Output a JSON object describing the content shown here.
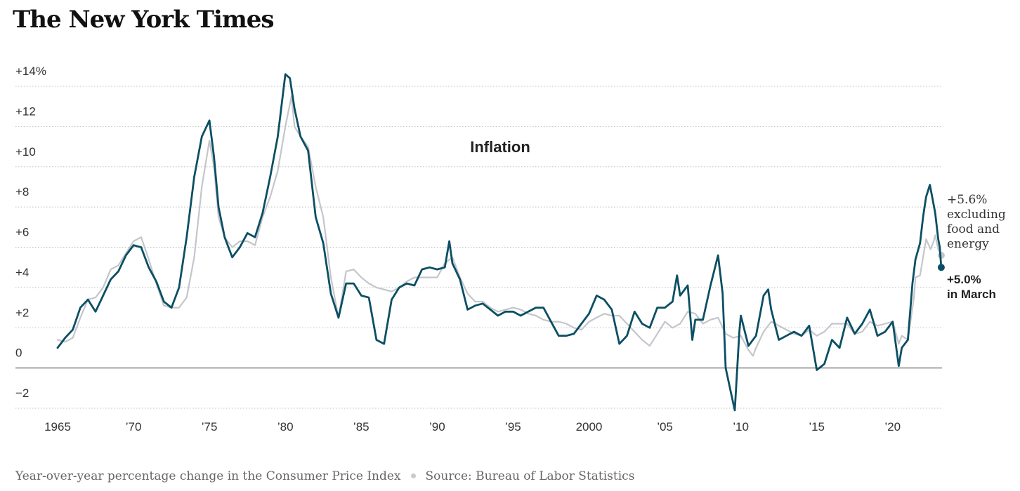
{
  "logo": "The New York Times",
  "footer": {
    "description": "Year-over-year percentage change in the Consumer Price Index",
    "source": "Source: Bureau of Labor Statistics"
  },
  "chart_data": {
    "type": "line",
    "title": "Inflation",
    "xlabel": "",
    "ylabel": "",
    "xlim": [
      1965,
      2023.25
    ],
    "ylim": [
      -2,
      14
    ],
    "grid": true,
    "legend": "none",
    "y_ticks": [
      {
        "value": 14,
        "label": "+14%"
      },
      {
        "value": 12,
        "label": "+12"
      },
      {
        "value": 10,
        "label": "+10"
      },
      {
        "value": 8,
        "label": "+8"
      },
      {
        "value": 6,
        "label": "+6"
      },
      {
        "value": 4,
        "label": "+4"
      },
      {
        "value": 2,
        "label": "+2"
      },
      {
        "value": 0,
        "label": "0"
      },
      {
        "value": -2,
        "label": "−2"
      }
    ],
    "x_ticks": [
      {
        "value": 1965,
        "label": "1965"
      },
      {
        "value": 1970,
        "label": "’70"
      },
      {
        "value": 1975,
        "label": "’75"
      },
      {
        "value": 1980,
        "label": "’80"
      },
      {
        "value": 1985,
        "label": "’85"
      },
      {
        "value": 1990,
        "label": "’90"
      },
      {
        "value": 1995,
        "label": "’95"
      },
      {
        "value": 2000,
        "label": "2000"
      },
      {
        "value": 2005,
        "label": "’05"
      },
      {
        "value": 2010,
        "label": "’10"
      },
      {
        "value": 2015,
        "label": "’15"
      },
      {
        "value": 2020,
        "label": "’20"
      }
    ],
    "series": [
      {
        "key": "headline",
        "color": "#0b4f63",
        "annotation": [
          "+5.0%",
          "in March"
        ],
        "points": [
          [
            1965,
            1.0
          ],
          [
            1965.5,
            1.5
          ],
          [
            1966,
            1.9
          ],
          [
            1966.5,
            3.0
          ],
          [
            1967,
            3.4
          ],
          [
            1967.5,
            2.8
          ],
          [
            1968,
            3.6
          ],
          [
            1968.5,
            4.4
          ],
          [
            1969,
            4.8
          ],
          [
            1969.5,
            5.6
          ],
          [
            1970,
            6.1
          ],
          [
            1970.5,
            6.0
          ],
          [
            1971,
            5.0
          ],
          [
            1971.5,
            4.3
          ],
          [
            1972,
            3.3
          ],
          [
            1972.5,
            3.0
          ],
          [
            1973,
            4.0
          ],
          [
            1973.5,
            6.5
          ],
          [
            1974,
            9.5
          ],
          [
            1974.5,
            11.5
          ],
          [
            1975,
            12.3
          ],
          [
            1975.3,
            10.5
          ],
          [
            1975.6,
            8.0
          ],
          [
            1976,
            6.5
          ],
          [
            1976.5,
            5.5
          ],
          [
            1977,
            6.0
          ],
          [
            1977.5,
            6.7
          ],
          [
            1978,
            6.5
          ],
          [
            1978.5,
            7.7
          ],
          [
            1979,
            9.5
          ],
          [
            1979.5,
            11.5
          ],
          [
            1980,
            14.6
          ],
          [
            1980.3,
            14.4
          ],
          [
            1980.6,
            12.9
          ],
          [
            1981,
            11.5
          ],
          [
            1981.5,
            10.8
          ],
          [
            1982,
            7.5
          ],
          [
            1982.5,
            6.2
          ],
          [
            1983,
            3.7
          ],
          [
            1983.5,
            2.5
          ],
          [
            1984,
            4.2
          ],
          [
            1984.5,
            4.2
          ],
          [
            1985,
            3.6
          ],
          [
            1985.5,
            3.5
          ],
          [
            1986,
            1.4
          ],
          [
            1986.5,
            1.2
          ],
          [
            1987,
            3.4
          ],
          [
            1987.5,
            4.0
          ],
          [
            1988,
            4.2
          ],
          [
            1988.5,
            4.1
          ],
          [
            1989,
            4.9
          ],
          [
            1989.5,
            5.0
          ],
          [
            1990,
            4.9
          ],
          [
            1990.5,
            5.0
          ],
          [
            1990.8,
            6.3
          ],
          [
            1991,
            5.2
          ],
          [
            1991.5,
            4.4
          ],
          [
            1992,
            2.9
          ],
          [
            1992.5,
            3.1
          ],
          [
            1993,
            3.2
          ],
          [
            1993.5,
            2.9
          ],
          [
            1994,
            2.6
          ],
          [
            1994.5,
            2.8
          ],
          [
            1995,
            2.8
          ],
          [
            1995.5,
            2.6
          ],
          [
            1996,
            2.8
          ],
          [
            1996.5,
            3.0
          ],
          [
            1997,
            3.0
          ],
          [
            1997.5,
            2.3
          ],
          [
            1998,
            1.6
          ],
          [
            1998.5,
            1.6
          ],
          [
            1999,
            1.7
          ],
          [
            1999.5,
            2.2
          ],
          [
            2000,
            2.7
          ],
          [
            2000.5,
            3.6
          ],
          [
            2001,
            3.4
          ],
          [
            2001.5,
            2.9
          ],
          [
            2002,
            1.2
          ],
          [
            2002.5,
            1.6
          ],
          [
            2003,
            2.8
          ],
          [
            2003.5,
            2.2
          ],
          [
            2004,
            2.0
          ],
          [
            2004.5,
            3.0
          ],
          [
            2005,
            3.0
          ],
          [
            2005.5,
            3.3
          ],
          [
            2005.8,
            4.6
          ],
          [
            2006,
            3.6
          ],
          [
            2006.5,
            4.1
          ],
          [
            2006.8,
            1.4
          ],
          [
            2007,
            2.4
          ],
          [
            2007.5,
            2.4
          ],
          [
            2008,
            4.1
          ],
          [
            2008.5,
            5.6
          ],
          [
            2008.8,
            3.7
          ],
          [
            2009,
            0.0
          ],
          [
            2009.4,
            -1.4
          ],
          [
            2009.6,
            -2.1
          ],
          [
            2009.9,
            1.8
          ],
          [
            2010,
            2.6
          ],
          [
            2010.5,
            1.1
          ],
          [
            2011,
            1.6
          ],
          [
            2011.5,
            3.6
          ],
          [
            2011.8,
            3.9
          ],
          [
            2012,
            2.9
          ],
          [
            2012.5,
            1.4
          ],
          [
            2013,
            1.6
          ],
          [
            2013.5,
            1.8
          ],
          [
            2014,
            1.6
          ],
          [
            2014.5,
            2.1
          ],
          [
            2015,
            -0.1
          ],
          [
            2015.5,
            0.2
          ],
          [
            2016,
            1.4
          ],
          [
            2016.5,
            1.0
          ],
          [
            2017,
            2.5
          ],
          [
            2017.5,
            1.7
          ],
          [
            2018,
            2.2
          ],
          [
            2018.5,
            2.9
          ],
          [
            2019,
            1.6
          ],
          [
            2019.5,
            1.8
          ],
          [
            2020,
            2.3
          ],
          [
            2020.4,
            0.1
          ],
          [
            2020.6,
            1.0
          ],
          [
            2021,
            1.4
          ],
          [
            2021.3,
            4.2
          ],
          [
            2021.5,
            5.4
          ],
          [
            2021.8,
            6.2
          ],
          [
            2022,
            7.5
          ],
          [
            2022.2,
            8.5
          ],
          [
            2022.45,
            9.1
          ],
          [
            2022.6,
            8.5
          ],
          [
            2022.8,
            7.7
          ],
          [
            2023,
            6.4
          ],
          [
            2023.1,
            6.0
          ],
          [
            2023.2,
            5.0
          ]
        ]
      },
      {
        "key": "core",
        "color": "#c3c6cc",
        "annotation": [
          "+5.6%",
          "excluding",
          "food and",
          "energy"
        ],
        "points": [
          [
            1965,
            1.4
          ],
          [
            1965.5,
            1.3
          ],
          [
            1966,
            1.5
          ],
          [
            1966.5,
            2.5
          ],
          [
            1967,
            3.4
          ],
          [
            1967.5,
            3.5
          ],
          [
            1968,
            4.0
          ],
          [
            1968.5,
            4.9
          ],
          [
            1969,
            5.1
          ],
          [
            1969.5,
            5.7
          ],
          [
            1970,
            6.3
          ],
          [
            1970.5,
            6.5
          ],
          [
            1971,
            5.4
          ],
          [
            1971.5,
            4.2
          ],
          [
            1972,
            3.1
          ],
          [
            1972.5,
            3.0
          ],
          [
            1973,
            3.0
          ],
          [
            1973.5,
            3.5
          ],
          [
            1974,
            5.5
          ],
          [
            1974.5,
            9.0
          ],
          [
            1975,
            11.3
          ],
          [
            1975.3,
            10.0
          ],
          [
            1975.6,
            7.5
          ],
          [
            1976,
            6.5
          ],
          [
            1976.5,
            6.0
          ],
          [
            1977,
            6.3
          ],
          [
            1977.5,
            6.3
          ],
          [
            1978,
            6.1
          ],
          [
            1978.5,
            7.5
          ],
          [
            1979,
            8.5
          ],
          [
            1979.5,
            9.8
          ],
          [
            1980,
            12.0
          ],
          [
            1980.4,
            13.5
          ],
          [
            1980.6,
            12.0
          ],
          [
            1981,
            11.5
          ],
          [
            1981.5,
            11.0
          ],
          [
            1982,
            9.0
          ],
          [
            1982.5,
            7.5
          ],
          [
            1983,
            4.5
          ],
          [
            1983.5,
            2.5
          ],
          [
            1984,
            4.8
          ],
          [
            1984.5,
            4.9
          ],
          [
            1985,
            4.5
          ],
          [
            1985.5,
            4.2
          ],
          [
            1986,
            4.0
          ],
          [
            1986.5,
            3.9
          ],
          [
            1987,
            3.8
          ],
          [
            1987.5,
            4.0
          ],
          [
            1988,
            4.3
          ],
          [
            1988.5,
            4.5
          ],
          [
            1989,
            4.5
          ],
          [
            1989.5,
            4.5
          ],
          [
            1990,
            4.5
          ],
          [
            1990.5,
            5.2
          ],
          [
            1991,
            5.5
          ],
          [
            1991.5,
            4.5
          ],
          [
            1992,
            3.7
          ],
          [
            1992.5,
            3.3
          ],
          [
            1993,
            3.3
          ],
          [
            1993.5,
            3.0
          ],
          [
            1994,
            2.8
          ],
          [
            1994.5,
            2.9
          ],
          [
            1995,
            3.0
          ],
          [
            1995.5,
            2.9
          ],
          [
            1996,
            2.7
          ],
          [
            1996.5,
            2.6
          ],
          [
            1997,
            2.4
          ],
          [
            1997.5,
            2.3
          ],
          [
            1998,
            2.3
          ],
          [
            1998.5,
            2.2
          ],
          [
            1999,
            2.0
          ],
          [
            1999.5,
            1.9
          ],
          [
            2000,
            2.3
          ],
          [
            2000.5,
            2.5
          ],
          [
            2001,
            2.7
          ],
          [
            2001.5,
            2.6
          ],
          [
            2002,
            2.6
          ],
          [
            2002.5,
            2.2
          ],
          [
            2003,
            1.8
          ],
          [
            2003.5,
            1.4
          ],
          [
            2004,
            1.1
          ],
          [
            2004.5,
            1.7
          ],
          [
            2005,
            2.3
          ],
          [
            2005.5,
            2.0
          ],
          [
            2006,
            2.2
          ],
          [
            2006.5,
            2.8
          ],
          [
            2007,
            2.7
          ],
          [
            2007.5,
            2.2
          ],
          [
            2008,
            2.4
          ],
          [
            2008.5,
            2.5
          ],
          [
            2009,
            1.7
          ],
          [
            2009.5,
            1.5
          ],
          [
            2010,
            1.6
          ],
          [
            2010.5,
            0.9
          ],
          [
            2010.8,
            0.6
          ],
          [
            2011,
            1.0
          ],
          [
            2011.5,
            1.8
          ],
          [
            2012,
            2.3
          ],
          [
            2012.5,
            2.1
          ],
          [
            2013,
            1.9
          ],
          [
            2013.5,
            1.7
          ],
          [
            2014,
            1.6
          ],
          [
            2014.5,
            1.9
          ],
          [
            2015,
            1.6
          ],
          [
            2015.5,
            1.8
          ],
          [
            2016,
            2.2
          ],
          [
            2016.5,
            2.2
          ],
          [
            2017,
            2.2
          ],
          [
            2017.5,
            1.7
          ],
          [
            2018,
            1.8
          ],
          [
            2018.5,
            2.3
          ],
          [
            2019,
            2.1
          ],
          [
            2019.5,
            2.2
          ],
          [
            2020,
            2.3
          ],
          [
            2020.4,
            1.2
          ],
          [
            2020.6,
            1.6
          ],
          [
            2021,
            1.4
          ],
          [
            2021.4,
            3.5
          ],
          [
            2021.5,
            4.5
          ],
          [
            2021.8,
            4.6
          ],
          [
            2022,
            5.5
          ],
          [
            2022.2,
            6.4
          ],
          [
            2022.5,
            5.9
          ],
          [
            2022.7,
            6.3
          ],
          [
            2022.8,
            6.6
          ],
          [
            2023,
            5.9
          ],
          [
            2023.2,
            5.6
          ]
        ]
      }
    ]
  }
}
